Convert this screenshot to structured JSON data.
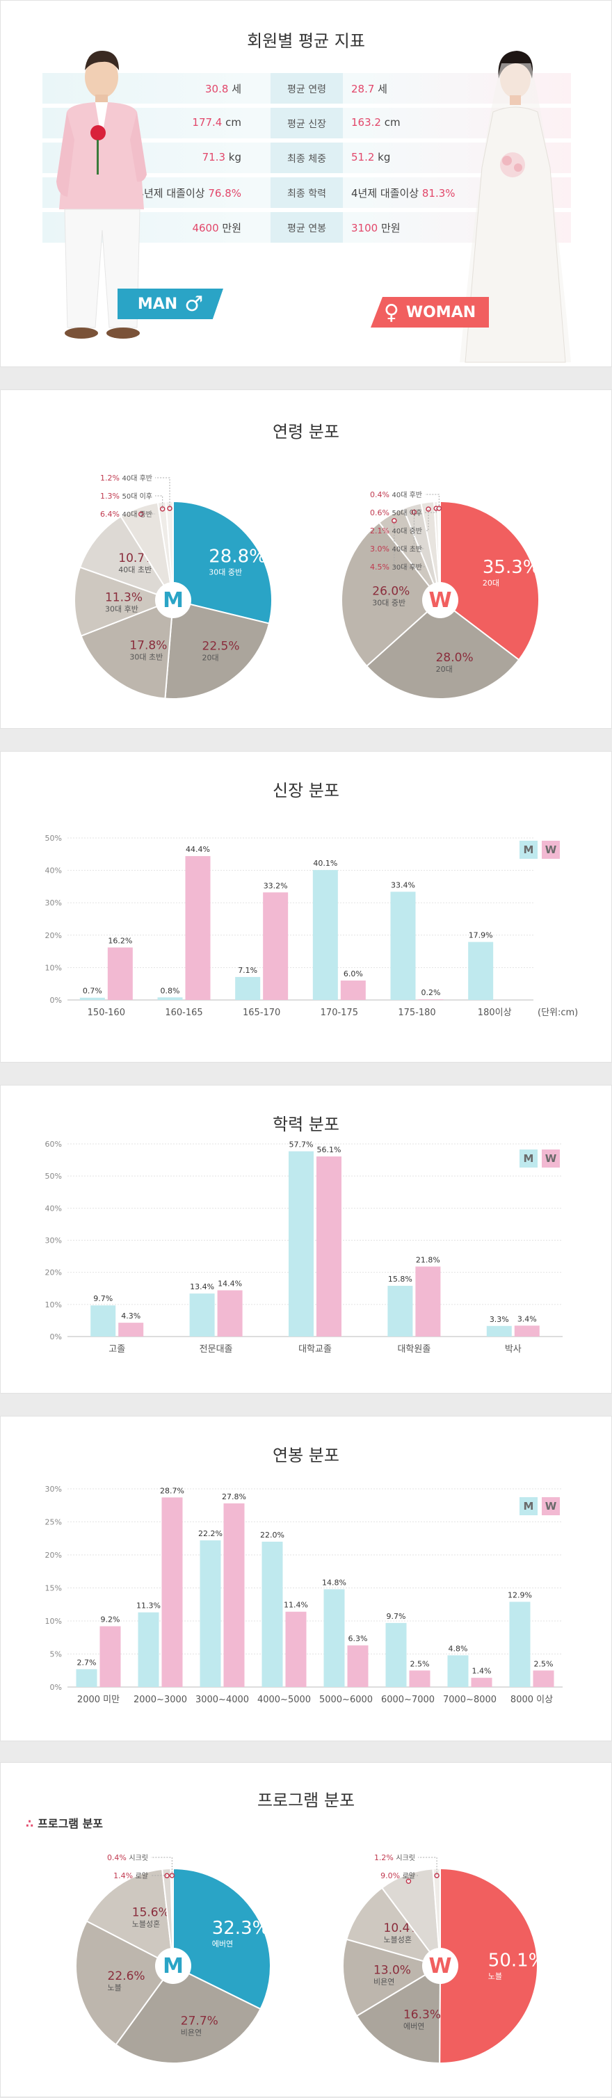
{
  "colors": {
    "man": "#2aa4c6",
    "woman": "#f15f5f",
    "gray1": "#aba59c",
    "gray2": "#bdb6ad",
    "gray3": "#cec8c0",
    "gray4": "#ddd9d4",
    "highlight": "#e2476a",
    "bar_m": "#bfe9ee",
    "bar_w": "#f2b9d2"
  },
  "avg": {
    "title": "회원별 평균 지표",
    "rows": [
      {
        "label": "평균 연령",
        "man_prefix": "",
        "man_value": "30.8",
        "man_unit": " 세",
        "woman_prefix": "",
        "woman_value": "28.7",
        "woman_unit": " 세"
      },
      {
        "label": "평균 신장",
        "man_prefix": "",
        "man_value": "177.4",
        "man_unit": " cm",
        "woman_prefix": "",
        "woman_value": "163.2",
        "woman_unit": " cm"
      },
      {
        "label": "최종 체중",
        "man_prefix": "",
        "man_value": "71.3",
        "man_unit": " kg",
        "woman_prefix": "",
        "woman_value": "51.2",
        "woman_unit": " kg"
      },
      {
        "label": "최종 학력",
        "man_prefix": "4년제 대졸이상 ",
        "man_value": "76.8%",
        "man_unit": "",
        "woman_prefix": "4년제 대졸이상 ",
        "woman_value": "81.3%",
        "woman_unit": ""
      },
      {
        "label": "평균 연봉",
        "man_prefix": "",
        "man_value": "4600",
        "man_unit": " 만원",
        "woman_prefix": "",
        "woman_value": "3100",
        "woman_unit": " 만원"
      }
    ],
    "man_badge": "MAN",
    "woman_badge": "WOMAN",
    "man_symbol": "♂",
    "woman_symbol": "♀"
  },
  "chart_data": [
    {
      "id": "age-man",
      "type": "pie",
      "title": "연령 분포",
      "center_letter": "M",
      "slices": [
        {
          "label": "30대 중반",
          "value": 28.8
        },
        {
          "label": "20대",
          "value": 22.5
        },
        {
          "label": "30대 초반",
          "value": 17.8
        },
        {
          "label": "30대 후반",
          "value": 11.3
        },
        {
          "label": "40대 초반",
          "value": 10.7
        },
        {
          "label": "40대 중반",
          "value": 6.4
        },
        {
          "label": "50대 이후",
          "value": 1.3
        },
        {
          "label": "40대 후반",
          "value": 1.2
        }
      ]
    },
    {
      "id": "age-woman",
      "type": "pie",
      "title": "",
      "center_letter": "W",
      "slices": [
        {
          "label": "20대",
          "value": 35.3
        },
        {
          "label": "20대",
          "value": 28.0
        },
        {
          "label": "30대 중반",
          "value": 26.0
        },
        {
          "label": "30대 후반",
          "value": 4.5
        },
        {
          "label": "40대 초반",
          "value": 3.0
        },
        {
          "label": "40대 중반",
          "value": 2.1
        },
        {
          "label": "50대 이후",
          "value": 0.6
        },
        {
          "label": "40대 후반",
          "value": 0.4
        }
      ]
    },
    {
      "id": "height",
      "type": "bar",
      "title": "신장 분포",
      "categories": [
        "150-160",
        "160-165",
        "165-170",
        "170-175",
        "175-180",
        "180이상"
      ],
      "series": [
        {
          "name": "M",
          "values": [
            0.7,
            0.8,
            7.1,
            40.1,
            33.4,
            17.9
          ]
        },
        {
          "name": "W",
          "values": [
            16.2,
            44.4,
            33.2,
            6.0,
            0.2,
            null
          ]
        }
      ],
      "yticks": [
        "0%",
        "10%",
        "20%",
        "30%",
        "40%",
        "50%"
      ],
      "ylim": [
        0,
        50
      ],
      "unit_note": "(단위:cm)"
    },
    {
      "id": "education",
      "type": "bar",
      "title": "학력 분포",
      "categories": [
        "고졸",
        "전문대졸",
        "대학교졸",
        "대학원졸",
        "박사"
      ],
      "series": [
        {
          "name": "M",
          "values": [
            9.7,
            13.4,
            57.7,
            15.8,
            3.3
          ]
        },
        {
          "name": "W",
          "values": [
            4.3,
            14.4,
            56.1,
            21.8,
            3.4
          ]
        }
      ],
      "yticks": [
        "0%",
        "10%",
        "20%",
        "30%",
        "40%",
        "50%",
        "60%"
      ],
      "ylim": [
        0,
        60
      ]
    },
    {
      "id": "salary",
      "type": "bar",
      "title": "연봉 분포",
      "categories": [
        "2000 미만",
        "2000~3000",
        "3000~4000",
        "4000~5000",
        "5000~6000",
        "6000~7000",
        "7000~8000",
        "8000 이상"
      ],
      "series": [
        {
          "name": "M",
          "values": [
            2.7,
            11.3,
            22.2,
            22.0,
            14.8,
            9.7,
            4.8,
            12.9
          ]
        },
        {
          "name": "W",
          "values": [
            9.2,
            28.7,
            27.8,
            11.4,
            6.3,
            2.5,
            1.4,
            2.5
          ]
        }
      ],
      "yticks": [
        "0%",
        "5%",
        "10%",
        "15%",
        "20%",
        "25%",
        "30%"
      ],
      "ylim": [
        0,
        30
      ]
    },
    {
      "id": "program-man",
      "type": "pie",
      "title": "프로그램 분포",
      "center_letter": "M",
      "slices": [
        {
          "label": "에버연",
          "value": 32.3
        },
        {
          "label": "비욘연",
          "value": 27.7
        },
        {
          "label": "노블",
          "value": 22.6
        },
        {
          "label": "노블성혼",
          "value": 15.6
        },
        {
          "label": "로얄",
          "value": 1.4
        },
        {
          "label": "시크릿",
          "value": 0.4
        }
      ]
    },
    {
      "id": "program-woman",
      "type": "pie",
      "title": "",
      "center_letter": "W",
      "slices": [
        {
          "label": "노블",
          "value": 50.1
        },
        {
          "label": "에버연",
          "value": 16.3
        },
        {
          "label": "비욘연",
          "value": 13.0
        },
        {
          "label": "노블성혼",
          "value": 10.4
        },
        {
          "label": "로얄",
          "value": 9.0
        },
        {
          "label": "시크릿",
          "value": 1.2
        }
      ]
    }
  ],
  "legend": {
    "m": "M",
    "w": "W"
  },
  "program_sub": "프로그램 분포"
}
